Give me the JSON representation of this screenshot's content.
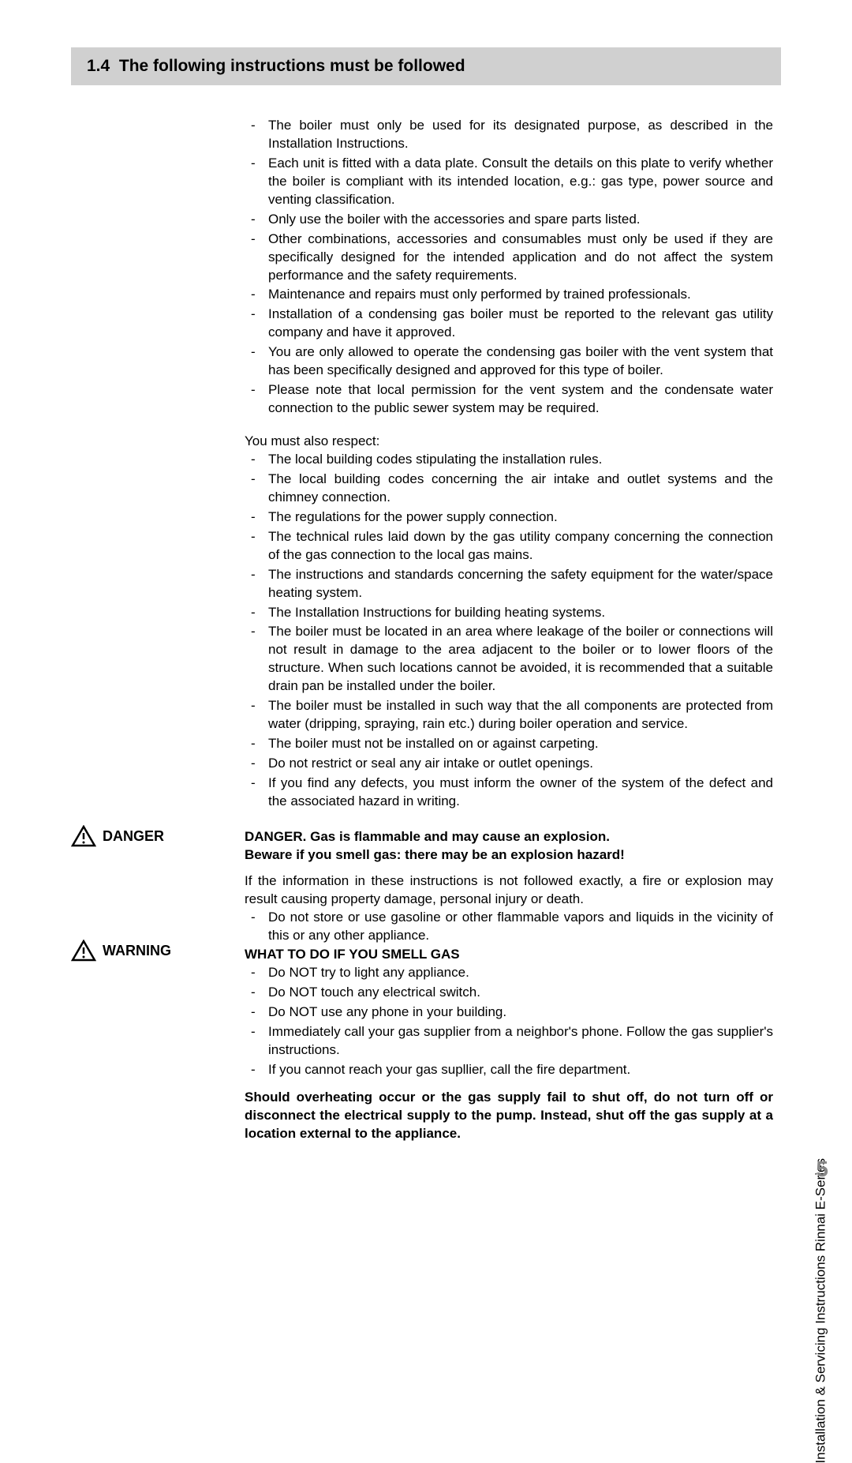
{
  "section": {
    "number": "1.4",
    "title": "The following instructions must be followed"
  },
  "list1": [
    "The boiler must only be used for its designated purpose, as described in the Installation Instructions.",
    "Each unit is fitted with a data plate. Consult the details on this plate to verify whether the boiler is compliant with its intended location, e.g.: gas type, power source and venting classification.",
    "Only use the boiler with the accessories and spare parts listed.",
    "Other combinations, accessories and consumables must only be used if they are specifically designed for the intended application and do not affect the system performance and the safety requirements.",
    "Maintenance and repairs must only performed by trained professionals.",
    "Installation of a condensing gas boiler must be reported  to the relevant gas utility company and have it approved.",
    "You are only allowed to operate the condensing gas boiler with the vent system that has been specifically designed and approved for this type of boiler.",
    "Please note that local permission for the vent system and the condensate water connection to the public sewer system may be required."
  ],
  "respect_intro": "You must also respect:",
  "list2": [
    "The local building codes stipulating the installation rules.",
    "The local building codes concerning the air intake and outlet systems and the chimney connection.",
    "The regulations for the power supply connection.",
    "The technical rules laid down by the gas utility company concerning the connection of the gas connection to the local gas mains.",
    "The instructions and standards concerning the safety equipment for the water/space heating system.",
    "The Installation Instructions for building heating systems.",
    "The boiler must be located in an area where leakage of the boiler or connections will not result in damage to the area adjacent to the boiler or to lower floors of the structure. When such locations cannot be avoided, it is recommended that a suitable drain pan be installed under the boiler.",
    "The boiler must be installed in such way that the all components are protected from water (dripping, spraying, rain etc.) during boiler operation and service.",
    "The boiler must not be installed on or against carpeting.",
    "Do not restrict or seal any air intake or outlet openings.",
    "If you find any defects, you must inform the owner of the system of the defect and the associated hazard in writing."
  ],
  "danger": {
    "label": "DANGER",
    "line1": "DANGER. Gas is flammable and may cause an explosion.",
    "line2": "Beware if you smell gas: there may be an explosion hazard!"
  },
  "warning_intro": "If the information in these instructions is not followed exactly, a fire or explosion may result causing property damage, personal injury or death.",
  "warning_bullet1": "Do not store or use gasoline or other flammable vapors and liquids in the vicinity of this or any other appliance.",
  "warning": {
    "label": "WARNING",
    "heading": "WHAT TO DO IF YOU SMELL GAS"
  },
  "list3": [
    "Do NOT try to light any appliance.",
    "Do NOT touch any electrical switch.",
    "Do NOT use any phone in your building.",
    "Immediately call your gas supplier from a neighbor's phone. Follow the gas supplier's instructions.",
    "If you cannot reach your gas supllier, call the fire department."
  ],
  "final_bold": "Should overheating occur or the gas supply fail to shut off, do not turn off or disconnect the electrical supply to the pump.  Instead, shut off the gas supply at a location external to the appliance.",
  "side_text": "Installation & Servicing Instructions Rinnai E-Series",
  "page_num": "5"
}
